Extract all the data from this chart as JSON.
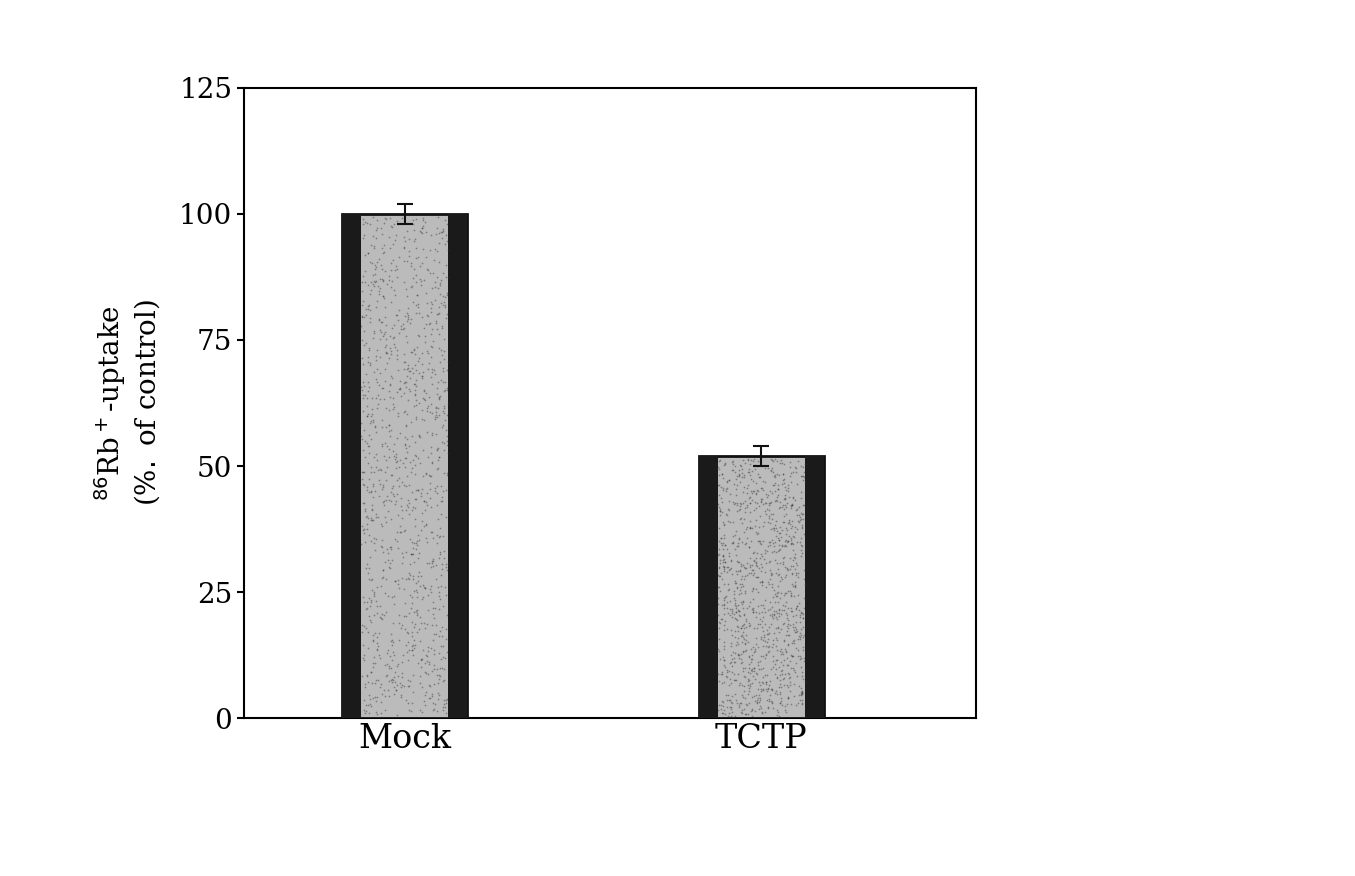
{
  "categories": [
    "Mock",
    "TCTP"
  ],
  "values": [
    100,
    52
  ],
  "errors": [
    2,
    2
  ],
  "ylabel_line1": "$^{86}$Rb$^+$-uptake",
  "ylabel_line2": "(%$.$ of control)",
  "ylim": [
    0,
    125
  ],
  "yticks": [
    0,
    25,
    50,
    75,
    100,
    125
  ],
  "bar_width": 0.35,
  "bar_positions": [
    1,
    2
  ],
  "bar_center_color": "#bbbbbb",
  "bar_edge_color": "#111111",
  "bar_dark_stripe_color": "#1a1a1a",
  "error_color": "#111111",
  "background_color": "#ffffff",
  "xlabel_fontsize": 24,
  "ylabel_fontsize": 20,
  "tick_fontsize": 20,
  "figsize": [
    13.55,
    8.76
  ],
  "dpi": 100
}
